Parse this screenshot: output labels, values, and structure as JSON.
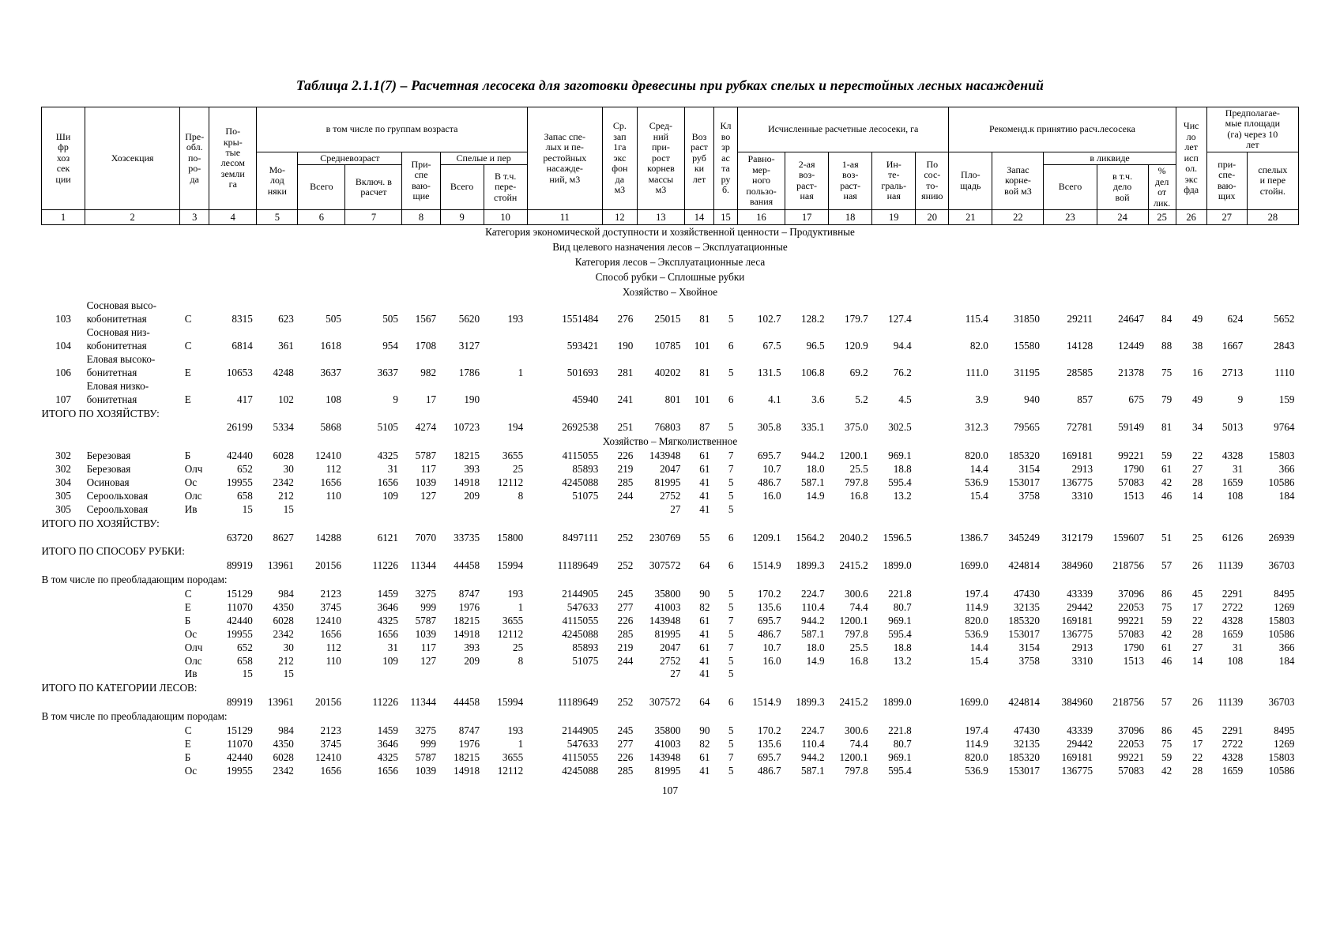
{
  "title": "Таблица 2.1.1(7) – Расчетная лесосека для заготовки древесины при рубках спелых и перестойных лесных насаждений",
  "page_number": "107",
  "table": {
    "header": {
      "c1": "Ши\nфр\nхоз\nсек\nции",
      "c2": "Хозсекция",
      "c3": "Пре-\nобл.\nпо-\nро-\nда",
      "c4": "По-\nкры-\nтые\nлесом\nземли\nга",
      "g_age": "в том числе по группам возраста",
      "c5": "Мо-\nлод\nняки",
      "g_middle": "Средневозраст",
      "c6": "Всего",
      "c7": "Включ. в\nрасчет",
      "c8": "При-\nспе\nваю-\nщие",
      "g_mature": "Спелые и пер",
      "c9": "Всего",
      "c10": "В т.ч.\nпере-\nстойн",
      "c11": "Запас спе-\nлых и пе-\nрестойных\nнасажде-\nний, м3",
      "c12": "Ср.\nзап\n1га\nэкс\nфон\nда\nм3",
      "c13": "Сред-\nний\nпри-\nрост\nкорнев\nмассы\nм3",
      "c14": "Воз\nраст\nруб\nки\nлет",
      "c15": "Кл\nво\nзр\nас\nта\nру\nб.",
      "g_calc": "Исчисленные расчетные лесосеки, га",
      "c16": "Равно-\nмер-\nного\nпользо-\nвания",
      "c17": "2-ая\nвоз-\nраст-\nная",
      "c18": "1-ая\nвоз-\nраст-\nная",
      "c19": "Ин-\nте-\nграль-\nная",
      "c20": "По\nсос-\nто-\nянию",
      "g_recommend": "Рекоменд.к принятию расч.лесосека",
      "c21": "Пло-\nщадь",
      "c22": "Запас\nкорне-\nвой м3",
      "g_liquid": "в ликвиде",
      "c23": "Всего",
      "c24": "в т.ч.\nдело\nвой",
      "c25": "%\nдел\nот\nлик.",
      "c26": "Чис\nло\nлет\nисп\nол.\nэкс\nфда",
      "g_future": "Предполагае-\nмые площади\n(га) через 10\nлет",
      "c27": "при-\nспе-\nваю-\nщих",
      "c28": "спелых\nи пере\nстойн.",
      "col_numbers": [
        "1",
        "2",
        "3",
        "4",
        "5",
        "6",
        "7",
        "8",
        "9",
        "10",
        "11",
        "12",
        "13",
        "14",
        "15",
        "16",
        "17",
        "18",
        "19",
        "20",
        "21",
        "22",
        "23",
        "24",
        "25",
        "26",
        "27",
        "28"
      ]
    },
    "rows": [
      {
        "type": "note",
        "text": "Категория экономической доступности и хозяйственной ценности – Продуктивные"
      },
      {
        "type": "note",
        "text": "Вид целевого назначения лесов – Эксплуатационные"
      },
      {
        "type": "note",
        "text": "Категория лесов – Эксплуатационные леса"
      },
      {
        "type": "note",
        "text": "Способ рубки – Сплошные рубки"
      },
      {
        "type": "note",
        "text": "Хозяйство – Хвойное"
      },
      {
        "type": "data",
        "code": "103",
        "name": "Сосновая высо-\nкобонитетная",
        "species": "С",
        "values": [
          "8315",
          "623",
          "505",
          "505",
          "1567",
          "5620",
          "193",
          "1551484",
          "276",
          "25015",
          "81",
          "5",
          "102.7",
          "128.2",
          "179.7",
          "127.4",
          "",
          "115.4",
          "31850",
          "29211",
          "24647",
          "84",
          "49",
          "624",
          "5652"
        ]
      },
      {
        "type": "data",
        "code": "104",
        "name": "Сосновая низ-\nкобонитетная",
        "species": "С",
        "values": [
          "6814",
          "361",
          "1618",
          "954",
          "1708",
          "3127",
          "",
          "593421",
          "190",
          "10785",
          "101",
          "6",
          "67.5",
          "96.5",
          "120.9",
          "94.4",
          "",
          "82.0",
          "15580",
          "14128",
          "12449",
          "88",
          "38",
          "1667",
          "2843"
        ]
      },
      {
        "type": "data",
        "code": "106",
        "name": "Еловая высоко-\nбонитетная",
        "species": "Е",
        "values": [
          "10653",
          "4248",
          "3637",
          "3637",
          "982",
          "1786",
          "1",
          "501693",
          "281",
          "40202",
          "81",
          "5",
          "131.5",
          "106.8",
          "69.2",
          "76.2",
          "",
          "111.0",
          "31195",
          "28585",
          "21378",
          "75",
          "16",
          "2713",
          "1110"
        ]
      },
      {
        "type": "data",
        "code": "107",
        "name": "Еловая низко-\nбонитетная",
        "species": "Е",
        "values": [
          "417",
          "102",
          "108",
          "9",
          "17",
          "190",
          "",
          "45940",
          "241",
          "801",
          "101",
          "6",
          "4.1",
          "3.6",
          "5.2",
          "4.5",
          "",
          "3.9",
          "940",
          "857",
          "675",
          "79",
          "49",
          "9",
          "159"
        ]
      },
      {
        "type": "label",
        "text": "ИТОГО ПО ХОЗЯЙСТВУ:"
      },
      {
        "type": "values",
        "values": [
          "26199",
          "5334",
          "5868",
          "5105",
          "4274",
          "10723",
          "194",
          "2692538",
          "251",
          "76803",
          "87",
          "5",
          "305.8",
          "335.1",
          "375.0",
          "302.5",
          "",
          "312.3",
          "79565",
          "72781",
          "59149",
          "81",
          "34",
          "5013",
          "9764"
        ]
      },
      {
        "type": "note",
        "text": "Хозяйство – Мягколиственное"
      },
      {
        "type": "data",
        "code": "302",
        "name": "Березовая",
        "species": "Б",
        "values": [
          "42440",
          "6028",
          "12410",
          "4325",
          "5787",
          "18215",
          "3655",
          "4115055",
          "226",
          "143948",
          "61",
          "7",
          "695.7",
          "944.2",
          "1200.1",
          "969.1",
          "",
          "820.0",
          "185320",
          "169181",
          "99221",
          "59",
          "22",
          "4328",
          "15803"
        ]
      },
      {
        "type": "data",
        "code": "302",
        "name": "Березовая",
        "species": "Олч",
        "values": [
          "652",
          "30",
          "112",
          "31",
          "117",
          "393",
          "25",
          "85893",
          "219",
          "2047",
          "61",
          "7",
          "10.7",
          "18.0",
          "25.5",
          "18.8",
          "",
          "14.4",
          "3154",
          "2913",
          "1790",
          "61",
          "27",
          "31",
          "366"
        ]
      },
      {
        "type": "data",
        "code": "304",
        "name": "Осиновая",
        "species": "Ос",
        "values": [
          "19955",
          "2342",
          "1656",
          "1656",
          "1039",
          "14918",
          "12112",
          "4245088",
          "285",
          "81995",
          "41",
          "5",
          "486.7",
          "587.1",
          "797.8",
          "595.4",
          "",
          "536.9",
          "153017",
          "136775",
          "57083",
          "42",
          "28",
          "1659",
          "10586"
        ]
      },
      {
        "type": "data",
        "code": "305",
        "name": "Сероольховая",
        "species": "Олс",
        "values": [
          "658",
          "212",
          "110",
          "109",
          "127",
          "209",
          "8",
          "51075",
          "244",
          "2752",
          "41",
          "5",
          "16.0",
          "14.9",
          "16.8",
          "13.2",
          "",
          "15.4",
          "3758",
          "3310",
          "1513",
          "46",
          "14",
          "108",
          "184"
        ]
      },
      {
        "type": "data",
        "code": "305",
        "name": "Сероольховая",
        "species": "Ив",
        "values": [
          "15",
          "15",
          "",
          "",
          "",
          "",
          "",
          "",
          "",
          "27",
          "41",
          "5",
          "",
          "",
          "",
          "",
          "",
          "",
          "",
          "",
          "",
          "",
          "",
          "",
          ""
        ]
      },
      {
        "type": "label",
        "text": "ИТОГО ПО ХОЗЯЙСТВУ:"
      },
      {
        "type": "values",
        "values": [
          "63720",
          "8627",
          "14288",
          "6121",
          "7070",
          "33735",
          "15800",
          "8497111",
          "252",
          "230769",
          "55",
          "6",
          "1209.1",
          "1564.2",
          "2040.2",
          "1596.5",
          "",
          "1386.7",
          "345249",
          "312179",
          "159607",
          "51",
          "25",
          "6126",
          "26939"
        ]
      },
      {
        "type": "label",
        "text": "ИТОГО ПО СПОСОБУ РУБКИ:"
      },
      {
        "type": "values",
        "values": [
          "89919",
          "13961",
          "20156",
          "11226",
          "11344",
          "44458",
          "15994",
          "11189649",
          "252",
          "307572",
          "64",
          "6",
          "1514.9",
          "1899.3",
          "2415.2",
          "1899.0",
          "",
          "1699.0",
          "424814",
          "384960",
          "218756",
          "57",
          "26",
          "11139",
          "36703"
        ]
      },
      {
        "type": "label",
        "text": "В том числе по преобладающим породам:"
      },
      {
        "type": "data",
        "code": "",
        "name": "",
        "species": "С",
        "values": [
          "15129",
          "984",
          "2123",
          "1459",
          "3275",
          "8747",
          "193",
          "2144905",
          "245",
          "35800",
          "90",
          "5",
          "170.2",
          "224.7",
          "300.6",
          "221.8",
          "",
          "197.4",
          "47430",
          "43339",
          "37096",
          "86",
          "45",
          "2291",
          "8495"
        ]
      },
      {
        "type": "data",
        "code": "",
        "name": "",
        "species": "Е",
        "values": [
          "11070",
          "4350",
          "3745",
          "3646",
          "999",
          "1976",
          "1",
          "547633",
          "277",
          "41003",
          "82",
          "5",
          "135.6",
          "110.4",
          "74.4",
          "80.7",
          "",
          "114.9",
          "32135",
          "29442",
          "22053",
          "75",
          "17",
          "2722",
          "1269"
        ]
      },
      {
        "type": "data",
        "code": "",
        "name": "",
        "species": "Б",
        "values": [
          "42440",
          "6028",
          "12410",
          "4325",
          "5787",
          "18215",
          "3655",
          "4115055",
          "226",
          "143948",
          "61",
          "7",
          "695.7",
          "944.2",
          "1200.1",
          "969.1",
          "",
          "820.0",
          "185320",
          "169181",
          "99221",
          "59",
          "22",
          "4328",
          "15803"
        ]
      },
      {
        "type": "data",
        "code": "",
        "name": "",
        "species": "Ос",
        "values": [
          "19955",
          "2342",
          "1656",
          "1656",
          "1039",
          "14918",
          "12112",
          "4245088",
          "285",
          "81995",
          "41",
          "5",
          "486.7",
          "587.1",
          "797.8",
          "595.4",
          "",
          "536.9",
          "153017",
          "136775",
          "57083",
          "42",
          "28",
          "1659",
          "10586"
        ]
      },
      {
        "type": "data",
        "code": "",
        "name": "",
        "species": "Олч",
        "values": [
          "652",
          "30",
          "112",
          "31",
          "117",
          "393",
          "25",
          "85893",
          "219",
          "2047",
          "61",
          "7",
          "10.7",
          "18.0",
          "25.5",
          "18.8",
          "",
          "14.4",
          "3154",
          "2913",
          "1790",
          "61",
          "27",
          "31",
          "366"
        ]
      },
      {
        "type": "data",
        "code": "",
        "name": "",
        "species": "Олс",
        "values": [
          "658",
          "212",
          "110",
          "109",
          "127",
          "209",
          "8",
          "51075",
          "244",
          "2752",
          "41",
          "5",
          "16.0",
          "14.9",
          "16.8",
          "13.2",
          "",
          "15.4",
          "3758",
          "3310",
          "1513",
          "46",
          "14",
          "108",
          "184"
        ]
      },
      {
        "type": "data",
        "code": "",
        "name": "",
        "species": "Ив",
        "values": [
          "15",
          "15",
          "",
          "",
          "",
          "",
          "",
          "",
          "",
          "27",
          "41",
          "5",
          "",
          "",
          "",
          "",
          "",
          "",
          "",
          "",
          "",
          "",
          "",
          "",
          ""
        ]
      },
      {
        "type": "label",
        "text": "ИТОГО ПО КАТЕГОРИИ ЛЕСОВ:"
      },
      {
        "type": "values",
        "values": [
          "89919",
          "13961",
          "20156",
          "11226",
          "11344",
          "44458",
          "15994",
          "11189649",
          "252",
          "307572",
          "64",
          "6",
          "1514.9",
          "1899.3",
          "2415.2",
          "1899.0",
          "",
          "1699.0",
          "424814",
          "384960",
          "218756",
          "57",
          "26",
          "11139",
          "36703"
        ]
      },
      {
        "type": "label",
        "text": "В том числе по преобладающим породам:"
      },
      {
        "type": "data",
        "code": "",
        "name": "",
        "species": "С",
        "values": [
          "15129",
          "984",
          "2123",
          "1459",
          "3275",
          "8747",
          "193",
          "2144905",
          "245",
          "35800",
          "90",
          "5",
          "170.2",
          "224.7",
          "300.6",
          "221.8",
          "",
          "197.4",
          "47430",
          "43339",
          "37096",
          "86",
          "45",
          "2291",
          "8495"
        ]
      },
      {
        "type": "data",
        "code": "",
        "name": "",
        "species": "Е",
        "values": [
          "11070",
          "4350",
          "3745",
          "3646",
          "999",
          "1976",
          "1",
          "547633",
          "277",
          "41003",
          "82",
          "5",
          "135.6",
          "110.4",
          "74.4",
          "80.7",
          "",
          "114.9",
          "32135",
          "29442",
          "22053",
          "75",
          "17",
          "2722",
          "1269"
        ]
      },
      {
        "type": "data",
        "code": "",
        "name": "",
        "species": "Б",
        "values": [
          "42440",
          "6028",
          "12410",
          "4325",
          "5787",
          "18215",
          "3655",
          "4115055",
          "226",
          "143948",
          "61",
          "7",
          "695.7",
          "944.2",
          "1200.1",
          "969.1",
          "",
          "820.0",
          "185320",
          "169181",
          "99221",
          "59",
          "22",
          "4328",
          "15803"
        ]
      },
      {
        "type": "data",
        "code": "",
        "name": "",
        "species": "Ос",
        "values": [
          "19955",
          "2342",
          "1656",
          "1656",
          "1039",
          "14918",
          "12112",
          "4245088",
          "285",
          "81995",
          "41",
          "5",
          "486.7",
          "587.1",
          "797.8",
          "595.4",
          "",
          "536.9",
          "153017",
          "136775",
          "57083",
          "42",
          "28",
          "1659",
          "10586"
        ]
      }
    ]
  }
}
